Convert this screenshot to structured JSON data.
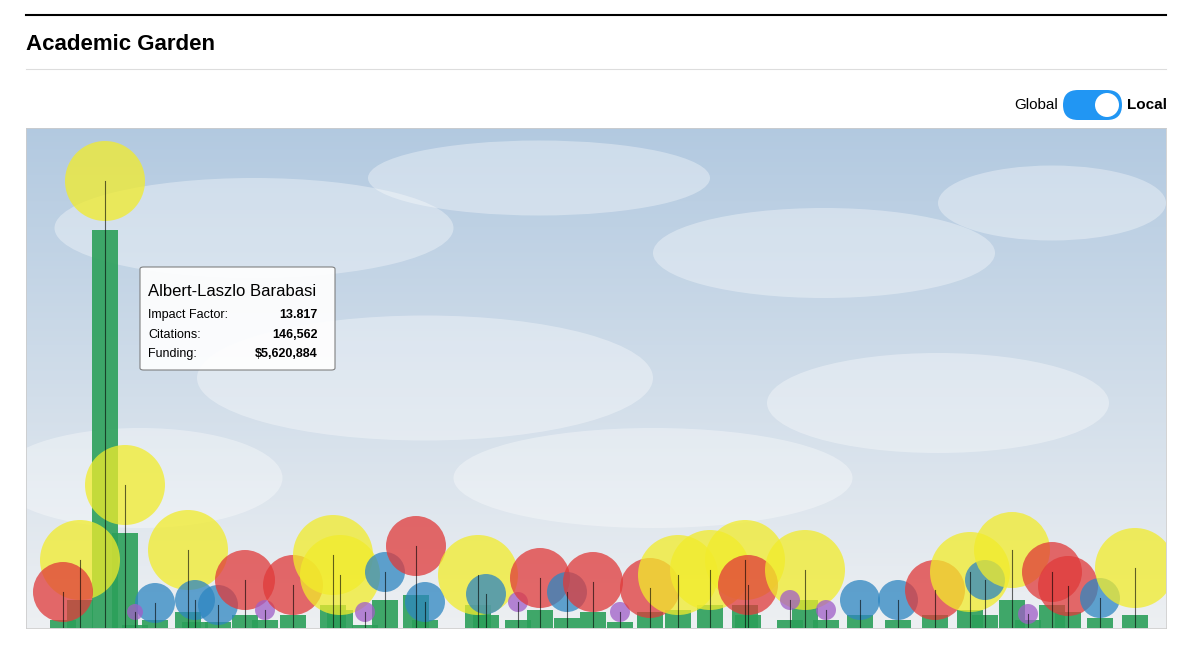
{
  "chart_data": {
    "type": "garden",
    "title": "Academic Garden",
    "toggle": {
      "left": "Global",
      "right": "Local",
      "selected": "Local"
    },
    "tooltip": {
      "name": "Albert-Laszlo Barabasi",
      "rows": [
        {
          "label": "Impact Factor:",
          "value": "13.817"
        },
        {
          "label": "Citations:",
          "value": "146,562"
        },
        {
          "label": "Funding:",
          "value": "$5,620,884"
        }
      ]
    },
    "xlim": [
      0,
      1140
    ],
    "ylim": [
      0,
      500
    ],
    "tick_labels": false,
    "x": [
      79,
      99,
      54,
      37,
      162,
      129,
      109,
      169,
      192,
      219,
      239,
      267,
      307,
      314,
      339,
      359,
      390,
      399,
      452,
      460,
      492,
      514,
      541,
      567,
      594,
      624,
      652,
      684,
      719,
      722,
      779,
      764,
      800,
      834,
      872,
      909,
      944,
      959,
      986,
      1002,
      1026,
      1042,
      1074,
      1109
    ],
    "values": [
      398,
      95,
      28,
      8,
      16,
      8,
      3,
      6,
      6,
      13,
      8,
      13,
      23,
      18,
      3,
      28,
      33,
      8,
      23,
      13,
      8,
      18,
      10,
      16,
      6,
      16,
      18,
      23,
      23,
      13,
      28,
      8,
      8,
      13,
      8,
      13,
      18,
      13,
      28,
      8,
      23,
      16,
      10,
      13
    ],
    "bloom": [
      447,
      143,
      68,
      36,
      78,
      25,
      16,
      28,
      23,
      48,
      18,
      43,
      73,
      53,
      16,
      56,
      82,
      26,
      53,
      34,
      26,
      50,
      36,
      46,
      16,
      40,
      53,
      58,
      68,
      43,
      58,
      28,
      18,
      28,
      28,
      38,
      56,
      48,
      78,
      14,
      56,
      42,
      30,
      60
    ],
    "size": [
      40,
      40,
      40,
      30,
      40,
      20,
      8,
      20,
      20,
      30,
      10,
      30,
      40,
      40,
      10,
      20,
      30,
      20,
      40,
      20,
      10,
      30,
      20,
      30,
      10,
      30,
      40,
      40,
      40,
      30,
      40,
      10,
      10,
      20,
      20,
      30,
      40,
      20,
      38,
      10,
      30,
      30,
      20,
      40
    ],
    "colors": [
      "#f2ec2b",
      "#f2ec2b",
      "#f2ec2b",
      "#e03a3a",
      "#f2ec2b",
      "#2e86c1",
      "#a05ec8",
      "#2e86c1",
      "#2e86c1",
      "#e03a3a",
      "#a05ec8",
      "#e03a3a",
      "#f2ec2b",
      "#f2ec2b",
      "#a05ec8",
      "#2e86c1",
      "#e03a3a",
      "#2e86c1",
      "#f2ec2b",
      "#2e86c1",
      "#a05ec8",
      "#e03a3a",
      "#2e86c1",
      "#e03a3a",
      "#a05ec8",
      "#e03a3a",
      "#f2ec2b",
      "#f2ec2b",
      "#f2ec2b",
      "#e03a3a",
      "#f2ec2b",
      "#a05ec8",
      "#a05ec8",
      "#2e86c1",
      "#2e86c1",
      "#e03a3a",
      "#f2ec2b",
      "#2e86c1",
      "#f2ec2b",
      "#a05ec8",
      "#e03a3a",
      "#e03a3a",
      "#2e86c1",
      "#f2ec2b"
    ]
  }
}
